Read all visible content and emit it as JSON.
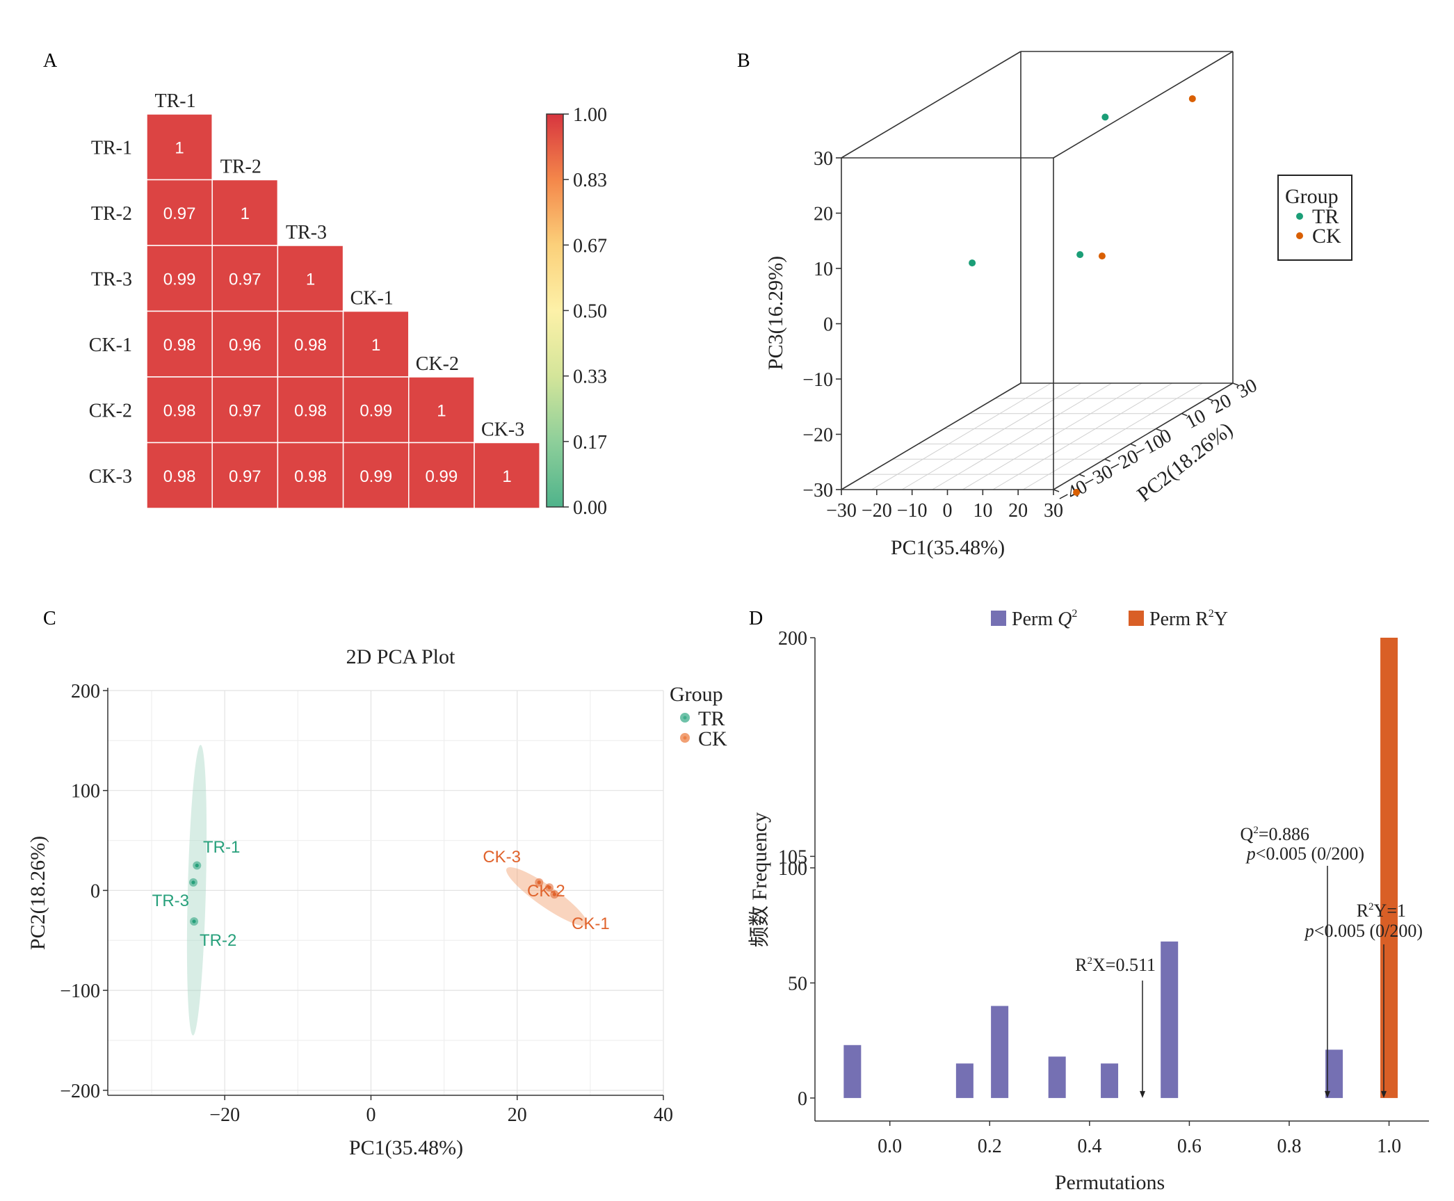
{
  "panel_labels": [
    "A",
    "B",
    "C",
    "D"
  ],
  "chart_data": [
    {
      "panel": "A",
      "type": "heatmap",
      "labels": [
        "TR-1",
        "TR-2",
        "TR-3",
        "CK-1",
        "CK-2",
        "CK-3"
      ],
      "matrix": [
        [
          1,
          null,
          null,
          null,
          null,
          null
        ],
        [
          0.97,
          1,
          null,
          null,
          null,
          null
        ],
        [
          0.99,
          0.97,
          1,
          null,
          null,
          null
        ],
        [
          0.98,
          0.96,
          0.98,
          1,
          null,
          null
        ],
        [
          0.98,
          0.97,
          0.98,
          0.99,
          1,
          null
        ],
        [
          0.98,
          0.97,
          0.98,
          0.99,
          0.99,
          1
        ]
      ],
      "cell_text": [
        [
          "1"
        ],
        [
          "0.97",
          "1"
        ],
        [
          "0.99",
          "0.97",
          "1"
        ],
        [
          "0.98",
          "0.96",
          "0.98",
          "1"
        ],
        [
          "0.98",
          "0.97",
          "0.98",
          "0.99",
          "1"
        ],
        [
          "0.98",
          "0.97",
          "0.98",
          "0.99",
          "0.99",
          "1"
        ]
      ],
      "colorbar": {
        "range": [
          0,
          1
        ],
        "ticks": [
          "1.00",
          "0.83",
          "0.67",
          "0.50",
          "0.33",
          "0.17",
          "0.00"
        ],
        "colors": [
          "#d7353f",
          "#f4874a",
          "#fbd07a",
          "#fdf1a8",
          "#d4e59a",
          "#8ecf9a",
          "#4fb38b"
        ]
      },
      "cell_color": "#dc4443"
    },
    {
      "panel": "B",
      "type": "scatter",
      "projection": "3d",
      "xlabel": "PC1(35.48%)",
      "ylabel": "PC2(18.26%)",
      "zlabel": "PC3(16.29%)",
      "x_ticks": [
        "−30",
        "−20",
        "−10",
        "0",
        "10",
        "20",
        "30"
      ],
      "y_ticks": [
        "−40",
        "−30",
        "−20",
        "−10",
        "0",
        "10",
        "20",
        "30"
      ],
      "z_ticks": [
        "30",
        "20",
        "10",
        "0",
        "−10",
        "−20",
        "−30"
      ],
      "xlim": [
        -30,
        30
      ],
      "ylim": [
        -40,
        30
      ],
      "zlim": [
        -30,
        30
      ],
      "legend": {
        "title": "Group",
        "entries": [
          {
            "label": "TR",
            "color": "#1b9e77"
          },
          {
            "label": "CK",
            "color": "#d95f02"
          }
        ]
      },
      "series": [
        {
          "name": "TR",
          "color": "#1b9e77",
          "points": [
            [
              -22,
              0,
              0
            ],
            [
              12,
              5,
              25
            ],
            [
              23,
              -20,
              7
            ]
          ]
        },
        {
          "name": "CK",
          "color": "#d95f02",
          "points": [
            [
              20,
              28,
              22
            ],
            [
              22,
              -10,
              4
            ],
            [
              22,
              -20,
              -36
            ]
          ]
        }
      ]
    },
    {
      "panel": "C",
      "type": "scatter",
      "title": "2D PCA Plot",
      "xlabel": "PC1(35.48%)",
      "ylabel": "PC2(18.26%)",
      "xlim": [
        -36,
        40
      ],
      "ylim": [
        -205,
        200
      ],
      "x_ticks": [
        {
          "v": -20,
          "t": "−20"
        },
        {
          "v": 0,
          "t": "0"
        },
        {
          "v": 20,
          "t": "20"
        },
        {
          "v": 40,
          "t": "40"
        }
      ],
      "y_ticks": [
        {
          "v": 200,
          "t": "200"
        },
        {
          "v": 100,
          "t": "100"
        },
        {
          "v": 0,
          "t": "0"
        },
        {
          "v": -100,
          "t": "−100"
        },
        {
          "v": -200,
          "t": "−200"
        }
      ],
      "grid": true,
      "legend": {
        "title": "Group",
        "entries": [
          {
            "label": "TR",
            "color": "#3fae8c"
          },
          {
            "label": "CK",
            "color": "#ec8046"
          }
        ]
      },
      "series": [
        {
          "name": "TR",
          "color": "#27a07b",
          "points": [
            {
              "label": "TR-1",
              "x": -23.8,
              "y": 25
            },
            {
              "label": "TR-2",
              "x": -24.2,
              "y": -31
            },
            {
              "label": "TR-3",
              "x": -24.3,
              "y": 8
            }
          ]
        },
        {
          "name": "CK",
          "color": "#e0632c",
          "points": [
            {
              "label": "CK-1",
              "x": 25.1,
              "y": -4
            },
            {
              "label": "CK-2",
              "x": 24.4,
              "y": 3
            },
            {
              "label": "CK-3",
              "x": 23.0,
              "y": 8
            }
          ]
        }
      ]
    },
    {
      "panel": "D",
      "type": "bar",
      "xlabel": "Permutations",
      "ylabel": "频数 Frequency",
      "xlim": [
        -0.15,
        1.08
      ],
      "ylim": [
        -10,
        200
      ],
      "x_ticks": [
        "0.0",
        "0.2",
        "0.4",
        "0.6",
        "0.8",
        "1.0"
      ],
      "y_ticks": [
        {
          "v": 0,
          "t": "0"
        },
        {
          "v": 50,
          "t": "50"
        },
        {
          "v": 100,
          "t": "100"
        },
        {
          "v": 105,
          "t": "105"
        },
        {
          "v": 200,
          "t": "200"
        }
      ],
      "legend": {
        "entries": [
          {
            "pre": "Perm ",
            "italic": "Q",
            "sup": "2",
            "post": "",
            "color": "#7570b3"
          },
          {
            "pre": "Perm R",
            "italic": "",
            "sup": "2",
            "post": "Y",
            "color": "#d95f26"
          }
        ]
      },
      "series": [
        {
          "name": "Perm Q2",
          "color": "#7570b3",
          "bars": [
            {
              "x": -0.075,
              "value": 23
            },
            {
              "x": 0.15,
              "value": 15
            },
            {
              "x": 0.22,
              "value": 40
            },
            {
              "x": 0.335,
              "value": 18
            },
            {
              "x": 0.44,
              "value": 15
            },
            {
              "x": 0.56,
              "value": 68
            },
            {
              "x": 0.89,
              "value": 21
            }
          ]
        },
        {
          "name": "Perm R2Y",
          "color": "#d95f26",
          "bars": [
            {
              "x": 1.0,
              "value": 200
            }
          ]
        }
      ],
      "annotations": [
        {
          "x": 0.511,
          "line1_pre": "R",
          "line1_sup": "2",
          "line1_post": "X=0.511",
          "line2": ""
        },
        {
          "x": 0.886,
          "line1_pre": "Q",
          "line1_sup": "2",
          "line1_post": "=0.886",
          "line2": "<0.005 (0/200)"
        },
        {
          "x": 1.0,
          "line1_pre": "R",
          "line1_sup": "2",
          "line1_post": "Y=1",
          "line2": "<0.005 (0/200)"
        }
      ],
      "p_symbol": "p"
    }
  ]
}
